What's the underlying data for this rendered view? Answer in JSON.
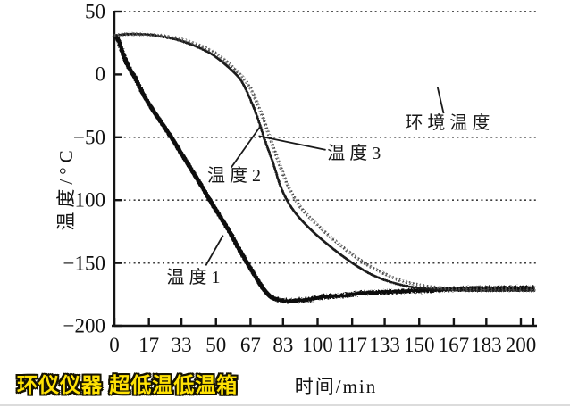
{
  "figure": {
    "watermark": "环仪仪器 超低温低温箱",
    "watermark_color": "#ffe204",
    "background": "#ffffff",
    "ink_color": "#141414"
  },
  "chart_data": {
    "type": "line",
    "title": "",
    "xlabel": "时间/min",
    "ylabel": "温度/°C",
    "xlim": [
      0,
      200
    ],
    "ylim": [
      -200,
      50
    ],
    "grid": "horizontal-dotted",
    "legend_position": "inline-annotations",
    "x_tick_values": [
      0,
      17,
      33,
      50,
      67,
      83,
      100,
      117,
      133,
      150,
      167,
      183,
      200
    ],
    "x_tick_labels": [
      "0",
      "17",
      "33",
      "50",
      "67",
      "83",
      "100",
      "117",
      "133",
      "150",
      "167",
      "183",
      "200"
    ],
    "y_tick_values": [
      50,
      0,
      -50,
      -100,
      -150,
      -200
    ],
    "y_tick_labels": [
      "50",
      "0",
      "−50",
      "−100",
      "−150",
      "−200"
    ],
    "series": [
      {
        "id": "temp1",
        "name": "温度1",
        "style": "thick-noisy",
        "points": [
          [
            0,
            31
          ],
          [
            2,
            27
          ],
          [
            5,
            13
          ],
          [
            8,
            3
          ],
          [
            10,
            -2
          ],
          [
            14,
            -15
          ],
          [
            18,
            -26
          ],
          [
            23,
            -38
          ],
          [
            28,
            -50
          ],
          [
            33,
            -63
          ],
          [
            38,
            -76
          ],
          [
            43,
            -89
          ],
          [
            47,
            -100
          ],
          [
            52,
            -113
          ],
          [
            57,
            -126
          ],
          [
            61,
            -138
          ],
          [
            65,
            -149
          ],
          [
            68,
            -157
          ],
          [
            71,
            -165
          ],
          [
            74,
            -172
          ],
          [
            77,
            -177
          ],
          [
            80,
            -179
          ],
          [
            84,
            -180
          ],
          [
            90,
            -180
          ],
          [
            96,
            -179
          ],
          [
            103,
            -177
          ],
          [
            112,
            -176
          ],
          [
            122,
            -174
          ],
          [
            135,
            -173
          ],
          [
            150,
            -172
          ],
          [
            165,
            -171
          ],
          [
            180,
            -170
          ],
          [
            193,
            -170
          ],
          [
            207,
            -170
          ]
        ]
      },
      {
        "id": "temp2",
        "name": "温度2",
        "style": "solid",
        "points": [
          [
            0,
            31
          ],
          [
            6,
            32
          ],
          [
            12,
            32
          ],
          [
            18,
            31.5
          ],
          [
            24,
            30
          ],
          [
            30,
            28
          ],
          [
            36,
            25
          ],
          [
            42,
            21
          ],
          [
            48,
            16
          ],
          [
            53,
            10
          ],
          [
            58,
            3
          ],
          [
            62,
            -4
          ],
          [
            65,
            -13
          ],
          [
            68,
            -24
          ],
          [
            71,
            -37
          ],
          [
            74,
            -52
          ],
          [
            78,
            -70
          ],
          [
            82,
            -90
          ],
          [
            86,
            -103
          ],
          [
            91,
            -114
          ],
          [
            97,
            -124
          ],
          [
            104,
            -134
          ],
          [
            111,
            -143
          ],
          [
            118,
            -151
          ],
          [
            125,
            -158
          ],
          [
            132,
            -163
          ],
          [
            140,
            -167
          ],
          [
            150,
            -170
          ],
          [
            162,
            -171
          ],
          [
            175,
            -172
          ],
          [
            190,
            -172
          ],
          [
            207,
            -172
          ]
        ]
      },
      {
        "id": "temp3",
        "name": "温度3",
        "style": "dotted-gray",
        "points": [
          [
            0,
            31
          ],
          [
            6,
            32
          ],
          [
            12,
            32
          ],
          [
            18,
            31.5
          ],
          [
            24,
            30.5
          ],
          [
            30,
            29
          ],
          [
            36,
            26.5
          ],
          [
            42,
            23
          ],
          [
            48,
            18.5
          ],
          [
            53,
            13
          ],
          [
            58,
            6
          ],
          [
            63,
            -2
          ],
          [
            67,
            -11
          ],
          [
            70,
            -22
          ],
          [
            73,
            -34
          ],
          [
            76,
            -48
          ],
          [
            80,
            -66
          ],
          [
            85,
            -87
          ],
          [
            90,
            -102
          ],
          [
            95,
            -112
          ],
          [
            102,
            -123
          ],
          [
            109,
            -133
          ],
          [
            116,
            -142
          ],
          [
            124,
            -151
          ],
          [
            131,
            -157
          ],
          [
            139,
            -163
          ],
          [
            148,
            -167
          ],
          [
            158,
            -169.5
          ],
          [
            170,
            -171
          ],
          [
            185,
            -171
          ],
          [
            207,
            -171
          ]
        ]
      },
      {
        "id": "ambient",
        "name": "环境温度",
        "style": "thick-band",
        "points": [
          [
            0,
            -4
          ],
          [
            207,
            -4
          ]
        ]
      }
    ],
    "annotations": [
      {
        "id": "temp1",
        "label": "温度1",
        "label_at": [
          40,
          -162
        ],
        "line": [
          [
            45,
            -152
          ],
          [
            53.5,
            -128
          ]
        ]
      },
      {
        "id": "temp2",
        "label": "温度2",
        "label_at": [
          60,
          -81
        ],
        "line": [
          [
            57.5,
            -74
          ],
          [
            71.5,
            -42
          ]
        ]
      },
      {
        "id": "temp3",
        "label": "温度3",
        "label_at": [
          119,
          -63
        ],
        "line": [
          [
            104,
            -60
          ],
          [
            71,
            -49
          ]
        ]
      },
      {
        "id": "ambient",
        "label": "环境温度",
        "label_at": [
          165,
          -39
        ],
        "line": [
          [
            162,
            -31
          ],
          [
            159,
            -10
          ]
        ]
      }
    ]
  }
}
